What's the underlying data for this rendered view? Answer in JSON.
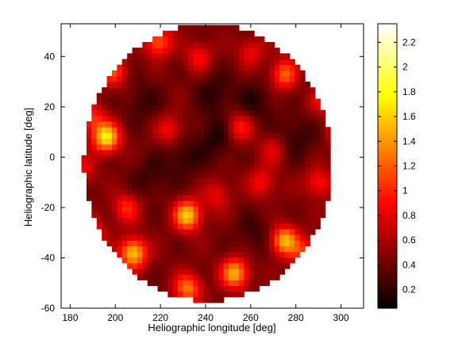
{
  "chart_data": {
    "type": "heatmap",
    "title": "",
    "xlabel": "Heliographic longitude [deg]",
    "ylabel": "Heliographic latitude [deg]",
    "xlim": [
      176,
      310
    ],
    "ylim": [
      -60,
      53
    ],
    "xticks": [
      180,
      200,
      220,
      240,
      260,
      280,
      300
    ],
    "yticks": [
      -60,
      -40,
      -20,
      0,
      20,
      40
    ],
    "colorbar": {
      "colormap": "hot",
      "clim": [
        0.05,
        2.35
      ],
      "ticks": [
        0.2,
        0.4,
        0.6,
        0.8,
        1,
        1.2,
        1.4,
        1.6,
        1.8,
        2,
        2.2
      ],
      "tick_labels": [
        "0.2",
        "0.4",
        "0.6",
        "0.8",
        "1",
        "1.2",
        "1.4",
        "1.6",
        "1.8",
        "2",
        "2.2"
      ]
    },
    "grid": false,
    "data_region": {
      "shape": "disk",
      "center_longitude": 241,
      "center_latitude": -2,
      "radius_deg": 55
    },
    "background_level": 0.45,
    "hotspots": [
      {
        "longitude": 196,
        "latitude": 8,
        "value": 1.7
      },
      {
        "longitude": 302,
        "latitude": 11,
        "value": 1.8
      },
      {
        "longitude": 232,
        "latitude": -23,
        "value": 1.6
      },
      {
        "longitude": 208,
        "latitude": -38,
        "value": 1.6
      },
      {
        "longitude": 275,
        "latitude": -33,
        "value": 1.5
      },
      {
        "longitude": 253,
        "latitude": -46,
        "value": 1.5
      },
      {
        "longitude": 232,
        "latitude": -52,
        "value": 1.3
      },
      {
        "longitude": 219,
        "latitude": 46,
        "value": 1.2
      },
      {
        "longitude": 275,
        "latitude": 33,
        "value": 1.2
      },
      {
        "longitude": 199,
        "latitude": 34,
        "value": 1.1
      },
      {
        "longitude": 189,
        "latitude": 16,
        "value": 1.0
      },
      {
        "longitude": 205,
        "latitude": -20,
        "value": 1.0
      },
      {
        "longitude": 255,
        "latitude": 12,
        "value": 1.0
      },
      {
        "longitude": 290,
        "latitude": -10,
        "value": 0.95
      },
      {
        "longitude": 237,
        "latitude": 40,
        "value": 0.9
      },
      {
        "longitude": 224,
        "latitude": 11,
        "value": 0.9
      },
      {
        "longitude": 260,
        "latitude": 42,
        "value": 0.85
      },
      {
        "longitude": 265,
        "latitude": -10,
        "value": 0.9
      },
      {
        "longitude": 292,
        "latitude": 23,
        "value": 0.9
      },
      {
        "longitude": 185,
        "latitude": -5,
        "value": 0.85
      },
      {
        "longitude": 245,
        "latitude": -15,
        "value": 0.85
      },
      {
        "longitude": 284,
        "latitude": -38,
        "value": 1.0
      },
      {
        "longitude": 190,
        "latitude": -30,
        "value": 0.95
      },
      {
        "longitude": 270,
        "latitude": 3,
        "value": 0.8
      }
    ],
    "dark_regions": [
      {
        "longitude": 245,
        "latitude": 8,
        "value": 0.15
      },
      {
        "longitude": 230,
        "latitude": 0,
        "value": 0.2
      },
      {
        "longitude": 262,
        "latitude": 22,
        "value": 0.2
      },
      {
        "longitude": 212,
        "latitude": 22,
        "value": 0.25
      },
      {
        "longitude": 280,
        "latitude": 8,
        "value": 0.2
      },
      {
        "longitude": 244,
        "latitude": 26,
        "value": 0.2
      },
      {
        "longitude": 292,
        "latitude": 35,
        "value": 0.25
      },
      {
        "longitude": 215,
        "latitude": -8,
        "value": 0.25
      },
      {
        "longitude": 262,
        "latitude": -30,
        "value": 0.25
      }
    ]
  }
}
